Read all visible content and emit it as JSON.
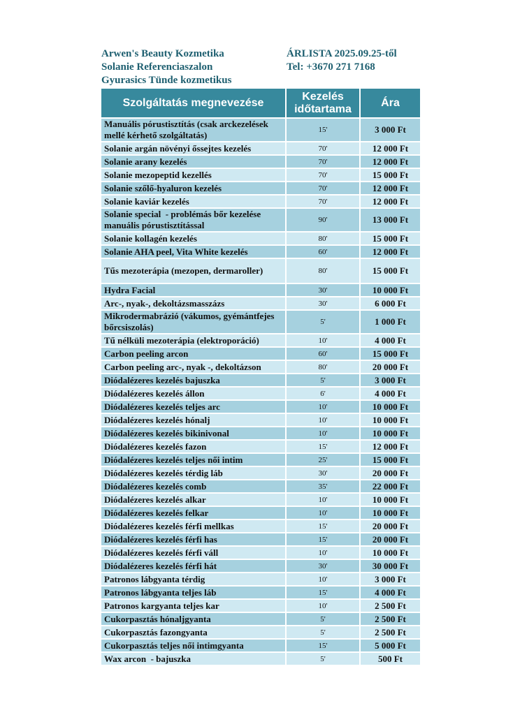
{
  "colors": {
    "header_bg": "#37899D",
    "row_dark": "#A6D1DF",
    "row_light": "#CFE9F2",
    "title_text": "#1E5F70"
  },
  "header": {
    "business_name": "Arwen's Beauty Kozmetika",
    "salon": "Solanie Referenciaszalon",
    "cosmetologist": "Gyurasics Tünde kozmetikus",
    "pricelist_title": "ÁRLISTA 2025.09.25-től",
    "phone": "Tel: +3670 271 7168"
  },
  "table": {
    "columns": [
      "Szolgáltatás megnevezése",
      "Kezelés időtartama",
      "Ára"
    ],
    "rows": [
      {
        "service": "Manuális pórustisztítás (csak arckezelések mellé kérhető szolgáltatás)",
        "duration": "15'",
        "price": "3 000 Ft"
      },
      {
        "service": "Solanie argán növényi őssejtes kezelés",
        "duration": "70'",
        "price": "12 000 Ft"
      },
      {
        "service": "Solanie arany kezelés",
        "duration": "70'",
        "price": "12 000 Ft"
      },
      {
        "service": "Solanie mezopeptid kezellés",
        "duration": "70'",
        "price": "15 000 Ft"
      },
      {
        "service": "Solanie szőlő-hyaluron kezelés",
        "duration": "70'",
        "price": "12 000 Ft"
      },
      {
        "service": "Solanie kaviár kezelés",
        "duration": "70'",
        "price": "12 000 Ft"
      },
      {
        "service": "Solanie special  - problémás bőr kezelése manuális pórustisztítással",
        "duration": "90'",
        "price": "13 000 Ft"
      },
      {
        "service": "Solanie kollagén kezelés",
        "duration": "80'",
        "price": "15 000 Ft"
      },
      {
        "service": "Solanie AHA peel, Vita White kezelés",
        "duration": "60'",
        "price": "12 000 Ft"
      },
      {
        "service": "Tűs mezoterápia (mezopen, dermaroller)",
        "duration": "80'",
        "price": "15 000 Ft",
        "tall": true
      },
      {
        "service": "Hydra Facial",
        "duration": "30'",
        "price": "10 000 Ft"
      },
      {
        "service": "Arc-, nyak-, dekoltázsmasszázs",
        "duration": "30'",
        "price": "6 000 Ft"
      },
      {
        "service": "Mikrodermabrázió (vákumos, gyémántfejes bőrcsiszolás)",
        "duration": "5'",
        "price": "1 000 Ft"
      },
      {
        "service": "Tű nélküli mezoterápia (elektroporáció)",
        "duration": "10'",
        "price": "4 000 Ft"
      },
      {
        "service": "Carbon peeling arcon",
        "duration": "60'",
        "price": "15 000 Ft"
      },
      {
        "service": "Carbon peeling arc-, nyak -, dekoltázson",
        "duration": "80'",
        "price": "20 000 Ft"
      },
      {
        "service": "Diódalézeres kezelés bajuszka",
        "duration": "5'",
        "price": "3 000 Ft"
      },
      {
        "service": "Diódalézeres kezelés állon",
        "duration": "6'",
        "price": "4 000 Ft"
      },
      {
        "service": "Diódalézeres kezelés teljes arc",
        "duration": "10'",
        "price": "10 000 Ft"
      },
      {
        "service": "Diódalézeres kezelés hónalj",
        "duration": "10'",
        "price": "10 000 Ft"
      },
      {
        "service": "Diódalézeres kezelés bikinivonal",
        "duration": "10'",
        "price": "10 000 Ft"
      },
      {
        "service": "Diódalézeres kezelés fazon",
        "duration": "15'",
        "price": "12 000 Ft"
      },
      {
        "service": "Diódalézeres kezelés teljes női intim",
        "duration": "25'",
        "price": "15 000 Ft"
      },
      {
        "service": "Diódalézeres kezelés térdig láb",
        "duration": "30'",
        "price": "20 000 Ft"
      },
      {
        "service": "Diódalézeres kezelés comb",
        "duration": "35'",
        "price": "22 000 Ft"
      },
      {
        "service": "Diódalézeres kezelés alkar",
        "duration": "10'",
        "price": "10 000 Ft"
      },
      {
        "service": "Diódalézeres kezelés felkar",
        "duration": "10'",
        "price": "10 000 Ft"
      },
      {
        "service": "Diódalézeres kezelés férfi mellkas",
        "duration": "15'",
        "price": "20 000 Ft"
      },
      {
        "service": "Diódalézeres kezelés férfi has",
        "duration": "15'",
        "price": "20 000 Ft"
      },
      {
        "service": "Diódalézeres kezelés férfi váll",
        "duration": "10'",
        "price": "10 000 Ft"
      },
      {
        "service": "Diódalézeres kezelés férfi hát",
        "duration": "30'",
        "price": "30 000 Ft"
      },
      {
        "service": "Patronos lábgyanta térdig",
        "duration": "10'",
        "price": "3 000 Ft"
      },
      {
        "service": "Patronos lábgyanta teljes láb",
        "duration": "15'",
        "price": "4 000 Ft"
      },
      {
        "service": "Patronos kargyanta teljes kar",
        "duration": "10'",
        "price": "2 500 Ft"
      },
      {
        "service": "Cukorpasztás hónaljgyanta",
        "duration": "5'",
        "price": "2 500 Ft"
      },
      {
        "service": "Cukorpasztás fazongyanta",
        "duration": "5'",
        "price": "2 500 Ft"
      },
      {
        "service": "Cukorpasztás teljes női intimgyanta",
        "duration": "15'",
        "price": "5 000 Ft"
      },
      {
        "service": "Wax arcon  - bajuszka",
        "duration": "5'",
        "price": "500 Ft"
      }
    ]
  }
}
